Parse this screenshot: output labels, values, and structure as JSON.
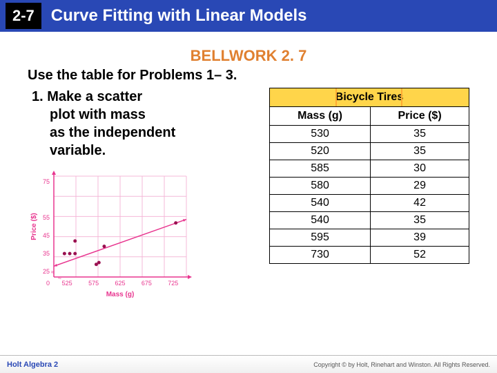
{
  "header": {
    "section": "2-7",
    "title": "Curve Fitting with Linear Models"
  },
  "bellwork": "BELLWORK 2. 7",
  "instruction": "Use the table for Problems 1– 3.",
  "problem": {
    "line1": "1. Make a scatter",
    "line2": "plot with mass",
    "line3": "as the independent",
    "line4": "variable."
  },
  "table": {
    "title": "Bicycle Tires",
    "col1": "Mass (g)",
    "col2": "Price ($)",
    "rows": [
      {
        "mass": "530",
        "price": "35"
      },
      {
        "mass": "520",
        "price": "35"
      },
      {
        "mass": "585",
        "price": "30"
      },
      {
        "mass": "580",
        "price": "29"
      },
      {
        "mass": "540",
        "price": "42"
      },
      {
        "mass": "540",
        "price": "35"
      },
      {
        "mass": "595",
        "price": "39"
      },
      {
        "mass": "730",
        "price": "52"
      }
    ]
  },
  "chart": {
    "type": "scatter",
    "xlabel": "Mass (g)",
    "ylabel": "Price ($)",
    "x_ticks": [
      525,
      575,
      625,
      675,
      725
    ],
    "y_ticks": [
      25,
      35,
      45,
      55,
      75
    ],
    "xlim": [
      500,
      750
    ],
    "ylim": [
      22,
      78
    ],
    "grid_color": "#f4b8d8",
    "axis_color": "#e8358f",
    "point_color": "#9a1050",
    "line_color": "#e8358f",
    "background_color": "#ffffff",
    "axis_label_color": "#e8358f",
    "tick_fontsize": 9,
    "label_fontsize": 10,
    "points": [
      {
        "x": 530,
        "y": 35
      },
      {
        "x": 520,
        "y": 35
      },
      {
        "x": 585,
        "y": 30
      },
      {
        "x": 580,
        "y": 29
      },
      {
        "x": 540,
        "y": 42
      },
      {
        "x": 540,
        "y": 35
      },
      {
        "x": 595,
        "y": 39
      },
      {
        "x": 730,
        "y": 52
      }
    ],
    "fit_line": {
      "x1": 500,
      "y1": 28,
      "x2": 750,
      "y2": 54
    }
  },
  "footer": {
    "left": "Holt Algebra 2",
    "right": "Copyright © by Holt, Rinehart and Winston. All Rights Reserved."
  }
}
